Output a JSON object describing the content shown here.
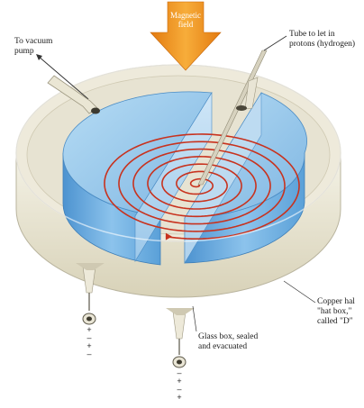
{
  "labels": {
    "magnetic_field": [
      "Magnetic",
      "field"
    ],
    "vacuum_pump": [
      "To vacuum",
      "pump"
    ],
    "tube": [
      "Tube to let in",
      "protons (hydrogen)"
    ],
    "copper": [
      "Copper hal",
      "\"hat box,\"",
      "called \"D\""
    ],
    "glass_box": [
      "Glass box, sealed",
      "and evacuated"
    ]
  },
  "terminal_left_signs": [
    "+",
    "–",
    "+",
    "–"
  ],
  "terminal_right_signs": [
    "–",
    "+",
    "–",
    "+"
  ],
  "colors": {
    "field_arrow": "#f39a1e",
    "spiral": "#c8321e",
    "dee_blue": "#8ec2e8",
    "dee_side": "#5b9fd6",
    "glass": "#f1efe2",
    "glass_edge": "#d9d4bf"
  }
}
